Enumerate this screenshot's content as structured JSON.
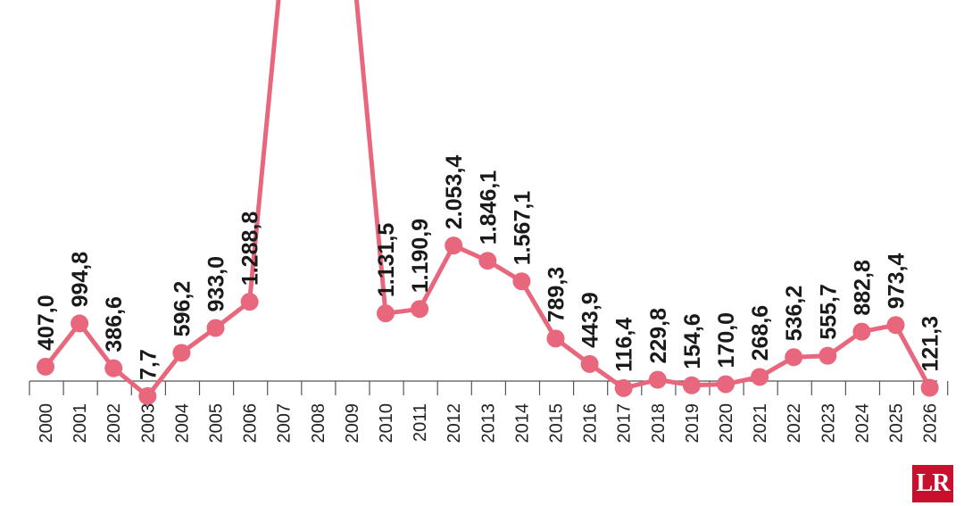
{
  "chart_data": {
    "type": "line",
    "x": [
      "2000",
      "2001",
      "2002",
      "2003",
      "2004",
      "2005",
      "2006",
      "2007",
      "2008",
      "2009",
      "2010",
      "2011",
      "2012",
      "2013",
      "2014",
      "2015",
      "2016",
      "2017",
      "2018",
      "2019",
      "2020",
      "2021",
      "2022",
      "2023",
      "2024",
      "2025",
      "2026"
    ],
    "values": [
      407.0,
      994.8,
      386.6,
      7.7,
      596.2,
      933.0,
      1288.8,
      null,
      null,
      null,
      1131.5,
      1190.9,
      2053.4,
      1846.1,
      1567.1,
      789.3,
      443.9,
      116.4,
      229.8,
      154.6,
      170.0,
      268.6,
      536.2,
      555.7,
      882.8,
      973.4,
      121.3
    ],
    "labels": [
      "407,0",
      "994,8",
      "386,6",
      "7,7",
      "596,2",
      "933,0",
      "1.288,8",
      "",
      "",
      "",
      "1.131,5",
      "1.190,9",
      "2.053,4",
      "1.846,1",
      "1.567,1",
      "789,3",
      "443,9",
      "116,4",
      "229,8",
      "154,6",
      "170,0",
      "268,6",
      "536,2",
      "555,7",
      "882,8",
      "973,4",
      "121,3"
    ],
    "offscreen_line_points": {
      "2007": "above top edge",
      "2009": "above top edge"
    },
    "line_color": "#e8677c",
    "grid": false,
    "legend": "none"
  },
  "logo": {
    "text": "LR",
    "background": "#c8102e"
  }
}
